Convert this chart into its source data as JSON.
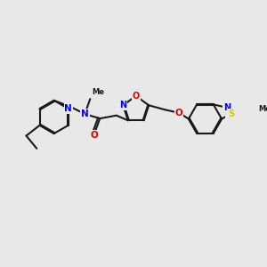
{
  "bg_color": "#e8e8e8",
  "bond_color": "#1a1a1a",
  "bond_width": 1.5,
  "dbo": 0.012,
  "atom_colors": {
    "N": "#0000ee",
    "O": "#dd0000",
    "S": "#cccc00",
    "C": "#1a1a1a"
  },
  "fs": 7.0
}
